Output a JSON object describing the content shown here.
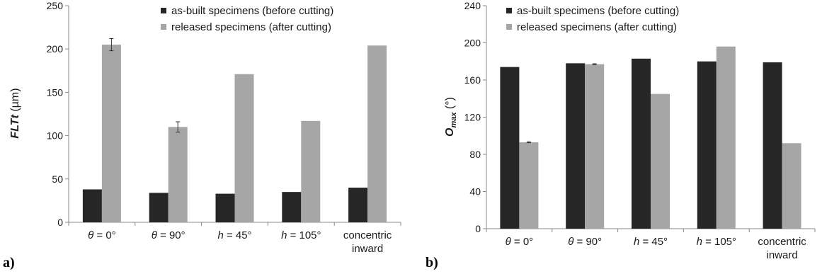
{
  "chart_data": [
    {
      "type": "bar",
      "panel_label": "a)",
      "ylabel_main": "FLTt",
      "ylabel_unit": " (µm)",
      "ylim": [
        0,
        250
      ],
      "yticks": [
        0,
        50,
        100,
        150,
        200,
        250
      ],
      "grid": false,
      "legend_position": "top-center",
      "categories": [
        [
          "θ = 0°"
        ],
        [
          "θ = 90°"
        ],
        [
          "h = 45°"
        ],
        [
          "h = 105°"
        ],
        [
          "concentric",
          "inward"
        ]
      ],
      "series": [
        {
          "name": "as-built specimens (before cutting)",
          "color": "#262626",
          "values": [
            38,
            34,
            33,
            35,
            40
          ],
          "errors": [
            0,
            0,
            0,
            0,
            0
          ]
        },
        {
          "name": "released specimens (after cutting)",
          "color": "#a6a6a6",
          "values": [
            205,
            110,
            171,
            117,
            204
          ],
          "errors": [
            7,
            6,
            0,
            0,
            0
          ]
        }
      ]
    },
    {
      "type": "bar",
      "panel_label": "b)",
      "ylabel_main": "O",
      "ylabel_sub": "max",
      "ylabel_unit": " (°)",
      "ylim": [
        0,
        240
      ],
      "yticks": [
        0,
        40,
        80,
        120,
        160,
        200,
        240
      ],
      "grid": false,
      "legend_position": "top-center",
      "categories": [
        [
          "θ = 0°"
        ],
        [
          "θ = 90°"
        ],
        [
          "h = 45°"
        ],
        [
          "h = 105°"
        ],
        [
          "concentric",
          "inward"
        ]
      ],
      "series": [
        {
          "name": "as-built specimens (before cutting)",
          "color": "#262626",
          "values": [
            174,
            178,
            183,
            180,
            179
          ],
          "errors": [
            0,
            0,
            0,
            0,
            0
          ]
        },
        {
          "name": "released specimens (after cutting)",
          "color": "#a6a6a6",
          "values": [
            93,
            177,
            145,
            196,
            92
          ],
          "errors": [
            0.5,
            0.5,
            0,
            0,
            0
          ]
        }
      ]
    }
  ]
}
